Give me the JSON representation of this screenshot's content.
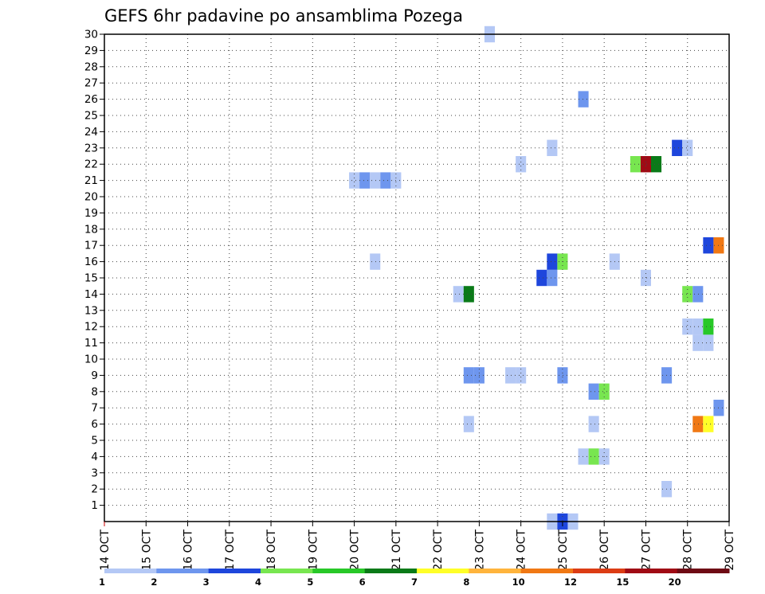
{
  "chart_data": {
    "type": "heatmap",
    "title": "GEFS 6hr padavine po ansamblima Pozega",
    "x_ticks": [
      "14 OCT",
      "15 OCT",
      "16 OCT",
      "17 OCT",
      "18 OCT",
      "19 OCT",
      "20 OCT",
      "21 OCT",
      "22 OCT",
      "23 OCT",
      "24 OCT",
      "25 OCT",
      "26 OCT",
      "27 OCT",
      "28 OCT",
      "29 OCT"
    ],
    "y_ticks": [
      1,
      2,
      3,
      4,
      5,
      6,
      7,
      8,
      9,
      10,
      11,
      12,
      13,
      14,
      15,
      16,
      17,
      18,
      19,
      20,
      21,
      22,
      23,
      24,
      25,
      26,
      27,
      28,
      29,
      30
    ],
    "xlim_days": [
      14,
      29
    ],
    "ylim": [
      0,
      30
    ],
    "grid": true,
    "colorbar": {
      "labels": [
        "1",
        "2",
        "3",
        "4",
        "5",
        "6",
        "7",
        "8",
        "10",
        "12",
        "15",
        "20"
      ],
      "colors": [
        "#b4c8f5",
        "#6e96ee",
        "#1e46dc",
        "#78e650",
        "#28c828",
        "#0a7a18",
        "#ffff28",
        "#ffb43c",
        "#f07814",
        "#dc3c14",
        "#a00a14",
        "#6e0a14"
      ]
    },
    "cells": [
      {
        "day": 20.0,
        "member": 21,
        "bin": 0
      },
      {
        "day": 20.25,
        "member": 21,
        "bin": 1
      },
      {
        "day": 20.5,
        "member": 21,
        "bin": 0
      },
      {
        "day": 20.75,
        "member": 21,
        "bin": 1
      },
      {
        "day": 21.0,
        "member": 21,
        "bin": 0
      },
      {
        "day": 20.5,
        "member": 16,
        "bin": 0
      },
      {
        "day": 22.5,
        "member": 14,
        "bin": 0
      },
      {
        "day": 22.75,
        "member": 14,
        "bin": 5
      },
      {
        "day": 22.75,
        "member": 9,
        "bin": 1
      },
      {
        "day": 23.0,
        "member": 9,
        "bin": 1
      },
      {
        "day": 22.75,
        "member": 6,
        "bin": 0
      },
      {
        "day": 23.25,
        "member": 30,
        "bin": 0
      },
      {
        "day": 23.75,
        "member": 9,
        "bin": 0
      },
      {
        "day": 24.0,
        "member": 9,
        "bin": 0
      },
      {
        "day": 24.0,
        "member": 22,
        "bin": 0
      },
      {
        "day": 24.5,
        "member": 15,
        "bin": 2
      },
      {
        "day": 24.75,
        "member": 15,
        "bin": 1
      },
      {
        "day": 24.75,
        "member": 16,
        "bin": 2
      },
      {
        "day": 25.0,
        "member": 16,
        "bin": 3
      },
      {
        "day": 24.75,
        "member": 23,
        "bin": 0
      },
      {
        "day": 25.0,
        "member": 9,
        "bin": 1
      },
      {
        "day": 24.75,
        "member": 0,
        "bin": 0
      },
      {
        "day": 25.0,
        "member": 0,
        "bin": 2
      },
      {
        "day": 25.25,
        "member": 0,
        "bin": 0
      },
      {
        "day": 25.5,
        "member": 26,
        "bin": 1
      },
      {
        "day": 25.5,
        "member": 4,
        "bin": 0
      },
      {
        "day": 25.75,
        "member": 4,
        "bin": 3
      },
      {
        "day": 26.0,
        "member": 4,
        "bin": 0
      },
      {
        "day": 25.75,
        "member": 8,
        "bin": 1
      },
      {
        "day": 26.0,
        "member": 8,
        "bin": 3
      },
      {
        "day": 25.75,
        "member": 6,
        "bin": 0
      },
      {
        "day": 26.25,
        "member": 16,
        "bin": 0
      },
      {
        "day": 26.75,
        "member": 22,
        "bin": 3
      },
      {
        "day": 27.0,
        "member": 22,
        "bin": 10
      },
      {
        "day": 27.25,
        "member": 22,
        "bin": 5
      },
      {
        "day": 27.0,
        "member": 15,
        "bin": 0
      },
      {
        "day": 27.5,
        "member": 9,
        "bin": 1
      },
      {
        "day": 27.5,
        "member": 2,
        "bin": 0
      },
      {
        "day": 27.75,
        "member": 23,
        "bin": 2
      },
      {
        "day": 28.0,
        "member": 23,
        "bin": 0
      },
      {
        "day": 28.0,
        "member": 14,
        "bin": 3
      },
      {
        "day": 28.25,
        "member": 14,
        "bin": 1
      },
      {
        "day": 28.0,
        "member": 12,
        "bin": 0
      },
      {
        "day": 28.25,
        "member": 12,
        "bin": 0
      },
      {
        "day": 28.5,
        "member": 12,
        "bin": 4
      },
      {
        "day": 28.25,
        "member": 11,
        "bin": 0
      },
      {
        "day": 28.5,
        "member": 11,
        "bin": 0
      },
      {
        "day": 28.25,
        "member": 6,
        "bin": 8
      },
      {
        "day": 28.5,
        "member": 6,
        "bin": 6
      },
      {
        "day": 28.5,
        "member": 17,
        "bin": 2
      },
      {
        "day": 28.75,
        "member": 17,
        "bin": 8
      },
      {
        "day": 28.75,
        "member": 7,
        "bin": 1
      }
    ]
  }
}
